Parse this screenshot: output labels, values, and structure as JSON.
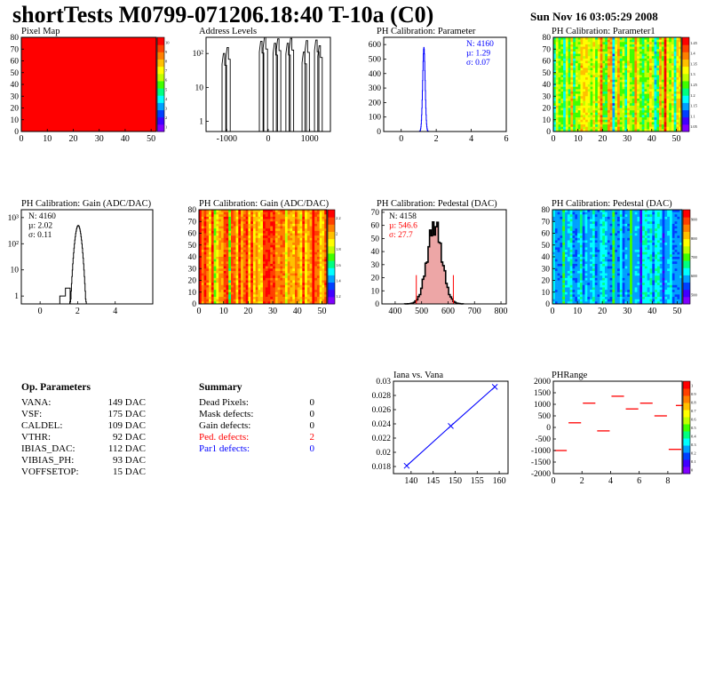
{
  "header": {
    "title": "shortTests M0799-071206.18:40 T-10a (C0)",
    "datetime": "Sun Nov 16 03:05:29 2008"
  },
  "colors": {
    "red": "#ff0000",
    "blue": "#0000ff",
    "black": "#000000",
    "fill_red": "#cc0000"
  },
  "palette": [
    "#8000ff",
    "#4000ff",
    "#0040ff",
    "#00a0ff",
    "#00ffff",
    "#00ff80",
    "#40ff00",
    "#c0ff00",
    "#ffff00",
    "#ffc000",
    "#ff8000",
    "#ff4000",
    "#ff0000"
  ],
  "op_params": {
    "title": "Op. Parameters",
    "rows": [
      {
        "name": "VANA:",
        "value": "149 DAC"
      },
      {
        "name": "VSF:",
        "value": "175 DAC"
      },
      {
        "name": "CALDEL:",
        "value": "109 DAC"
      },
      {
        "name": "VTHR:",
        "value": "92 DAC"
      },
      {
        "name": "IBIAS_DAC:",
        "value": "112 DAC"
      },
      {
        "name": "VIBIAS_PH:",
        "value": "93 DAC"
      },
      {
        "name": "VOFFSETOP:",
        "value": "15 DAC"
      }
    ]
  },
  "summary": {
    "title": "Summary",
    "rows": [
      {
        "name": "Dead Pixels:",
        "value": "0",
        "color": "#000000"
      },
      {
        "name": "Mask defects:",
        "value": "0",
        "color": "#000000"
      },
      {
        "name": "Gain defects:",
        "value": "0",
        "color": "#000000"
      },
      {
        "name": "Ped. defects:",
        "value": "2",
        "color": "#ff0000"
      },
      {
        "name": "Par1 defects:",
        "value": "0",
        "color": "#0000ff"
      }
    ]
  },
  "chart_data": [
    {
      "type": "heatmap",
      "title": "Pixel Map",
      "xlim": [
        0,
        52
      ],
      "ylim": [
        0,
        80
      ],
      "xticks": [
        "0",
        "10",
        "20",
        "30",
        "40",
        "50"
      ],
      "yticks": [
        "0",
        "10",
        "20",
        "30",
        "40",
        "50",
        "60",
        "70",
        "80"
      ],
      "zlim": [
        0,
        10
      ],
      "zticks": [
        "10",
        "9",
        "8",
        "7",
        "6",
        "5",
        "4",
        "3",
        "2",
        "1"
      ],
      "pattern": "uniform",
      "uniform_value": 10
    },
    {
      "type": "bar",
      "title": "Address Levels",
      "log_y": true,
      "xlim": [
        -1500,
        1500
      ],
      "ylim": [
        0.5,
        300
      ],
      "xticks": [
        "-1000",
        "0",
        "1000"
      ],
      "yticks": [
        "1",
        "10",
        "10²"
      ],
      "peaks": [
        {
          "x": -1050,
          "h": 100
        },
        {
          "x": -960,
          "h": 150
        },
        {
          "x": -150,
          "h": 230
        },
        {
          "x": -60,
          "h": 300
        },
        {
          "x": 180,
          "h": 200
        },
        {
          "x": 260,
          "h": 270
        },
        {
          "x": 490,
          "h": 200
        },
        {
          "x": 570,
          "h": 280
        },
        {
          "x": 880,
          "h": 110
        },
        {
          "x": 950,
          "h": 240
        },
        {
          "x": 1180,
          "h": 250
        },
        {
          "x": 1260,
          "h": 170
        }
      ]
    },
    {
      "type": "bar",
      "title": "PH Calibration: Parameter",
      "xlim": [
        -1,
        6
      ],
      "ylim": [
        0,
        650
      ],
      "xticks": [
        "0",
        "2",
        "4",
        "6"
      ],
      "yticks": [
        "0",
        "100",
        "200",
        "300",
        "400",
        "500",
        "600"
      ],
      "stats": [
        "N: 4160",
        "µ: 1.29",
        "σ: 0.07"
      ],
      "stats_color": "#0000ff",
      "line_color": "#0000ff",
      "gauss": {
        "mean": 1.29,
        "sigma": 0.07,
        "peak": 580
      }
    },
    {
      "type": "heatmap",
      "title": "PH Calibration: Parameter1",
      "xlim": [
        0,
        52
      ],
      "ylim": [
        0,
        80
      ],
      "xticks": [
        "0",
        "10",
        "20",
        "30",
        "40",
        "50"
      ],
      "yticks": [
        "0",
        "10",
        "20",
        "30",
        "40",
        "50",
        "60",
        "70",
        "80"
      ],
      "zlim": [
        1,
        1.5
      ],
      "zticks": [
        "1.45",
        "1.4",
        "1.35",
        "1.3",
        "1.25",
        "1.2",
        "1.15",
        "1.1",
        "1.05"
      ],
      "pattern": "columns",
      "seed": 7,
      "base": 0.62,
      "spread": 0.14
    },
    {
      "type": "bar",
      "title": "PH Calibration: Gain (ADC/DAC)",
      "log_y": true,
      "xlim": [
        -1,
        6
      ],
      "ylim": [
        0.5,
        2000
      ],
      "xticks": [
        "0",
        "2",
        "4"
      ],
      "yticks": [
        "1",
        "10",
        "10²",
        "10³"
      ],
      "stats": [
        "N: 4160",
        "µ: 2.02",
        "σ: 0.11"
      ],
      "stats_color": "#000000",
      "line_color": "#000000",
      "gauss": {
        "mean": 2.02,
        "sigma": 0.11,
        "peak": 500
      }
    },
    {
      "type": "heatmap",
      "title": "PH Calibration: Gain (ADC/DAC)",
      "xlim": [
        0,
        52
      ],
      "ylim": [
        0,
        80
      ],
      "xticks": [
        "0",
        "10",
        "20",
        "30",
        "40",
        "50"
      ],
      "yticks": [
        "0",
        "10",
        "20",
        "30",
        "40",
        "50",
        "60",
        "70",
        "80"
      ],
      "zlim": [
        1,
        2.3
      ],
      "zticks": [
        "2.2",
        "2",
        "1.8",
        "1.6",
        "1.4",
        "1.2"
      ],
      "pattern": "columns",
      "seed": 13,
      "base": 0.8,
      "spread": 0.12
    },
    {
      "type": "bar",
      "title": "PH Calibration: Pedestal (DAC)",
      "xlim": [
        350,
        820
      ],
      "ylim": [
        0,
        72
      ],
      "xticks": [
        "400",
        "500",
        "600",
        "700",
        "800"
      ],
      "yticks": [
        "0",
        "10",
        "20",
        "30",
        "40",
        "50",
        "60",
        "70"
      ],
      "stats": [
        "N: 4158",
        "µ: 546.6",
        "σ: 27.7"
      ],
      "stats_colors": [
        "#000000",
        "#ff0000",
        "#ff0000"
      ],
      "line_color": "#000000",
      "gauss": {
        "mean": 546.6,
        "sigma": 27.7,
        "peak": 62
      },
      "cut_lines": [
        480,
        620
      ]
    },
    {
      "type": "heatmap",
      "title": "PH Calibration: Pedestal (DAC)",
      "xlim": [
        0,
        52
      ],
      "ylim": [
        0,
        80
      ],
      "xticks": [
        "0",
        "10",
        "20",
        "30",
        "40",
        "50"
      ],
      "yticks": [
        "0",
        "10",
        "20",
        "30",
        "40",
        "50",
        "60",
        "70",
        "80"
      ],
      "zlim": [
        400,
        1000
      ],
      "zticks": [
        "900",
        "800",
        "700",
        "600",
        "500"
      ],
      "pattern": "columns",
      "seed": 21,
      "base": 0.3,
      "spread": 0.08
    },
    {
      "type": "line",
      "title": "Iana vs. Vana",
      "xlim": [
        136,
        162
      ],
      "ylim": [
        0.017,
        0.03
      ],
      "xticks": [
        "140",
        "145",
        "150",
        "155",
        "160"
      ],
      "yticks": [
        "0.018",
        "0.02",
        "0.022",
        "0.024",
        "0.026",
        "0.028",
        "0.03"
      ],
      "x": [
        139,
        149,
        159
      ],
      "y": [
        0.0181,
        0.0237,
        0.0292
      ]
    },
    {
      "type": "scatter",
      "title": "PHRange",
      "xlim": [
        0,
        9
      ],
      "ylim": [
        -2000,
        2000
      ],
      "xticks": [
        "0",
        "2",
        "4",
        "6",
        "8"
      ],
      "yticks": [
        "2000",
        "1500",
        "1000",
        "500",
        "0",
        "-500",
        "-1000",
        "-1500",
        "-2000"
      ],
      "zlim": [
        0,
        1
      ],
      "zticks": [
        "1",
        "0.9",
        "0.8",
        "0.7",
        "0.6",
        "0.5",
        "0.4",
        "0.3",
        "0.2",
        "0.1",
        "0"
      ],
      "segments": [
        {
          "x": 0,
          "y": -1000
        },
        {
          "x": 1,
          "y": 200
        },
        {
          "x": 2,
          "y": 1050
        },
        {
          "x": 3,
          "y": -150
        },
        {
          "x": 4,
          "y": 1350
        },
        {
          "x": 5,
          "y": 800
        },
        {
          "x": 6,
          "y": 1050
        },
        {
          "x": 7,
          "y": 500
        },
        {
          "x": 8,
          "y": -950
        },
        {
          "x": 8.5,
          "y": 950
        }
      ]
    }
  ]
}
